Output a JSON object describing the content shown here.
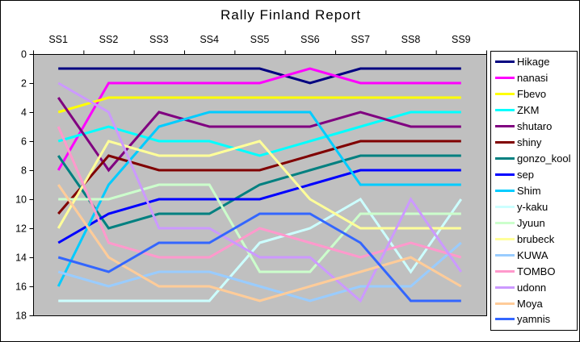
{
  "chart_data": {
    "type": "line",
    "title": "Rally Finland Report",
    "categories": [
      "SS1",
      "SS2",
      "SS3",
      "SS4",
      "SS5",
      "SS6",
      "SS7",
      "SS8",
      "SS9"
    ],
    "xlabel": "",
    "ylabel": "",
    "ylim": [
      0,
      18
    ],
    "y_ticks": [
      0,
      2,
      4,
      6,
      8,
      10,
      12,
      14,
      16,
      18
    ],
    "y_direction": "down",
    "grid": false,
    "plot_bg": "#c0c0c0",
    "legend_position": "right",
    "series": [
      {
        "name": "Hikage",
        "color": "#000080",
        "values": [
          1,
          1,
          1,
          1,
          1,
          2,
          1,
          1,
          1
        ]
      },
      {
        "name": "nanasi",
        "color": "#ff00ff",
        "values": [
          8,
          2,
          2,
          2,
          2,
          1,
          2,
          2,
          2
        ]
      },
      {
        "name": "Fbevo",
        "color": "#ffff00",
        "values": [
          4,
          3,
          3,
          3,
          3,
          3,
          3,
          3,
          3
        ]
      },
      {
        "name": "ZKM",
        "color": "#00ffff",
        "values": [
          6,
          5,
          6,
          6,
          7,
          6,
          5,
          4,
          4
        ]
      },
      {
        "name": "shutaro",
        "color": "#800080",
        "values": [
          3,
          8,
          4,
          5,
          5,
          5,
          4,
          5,
          5
        ]
      },
      {
        "name": "shiny",
        "color": "#800000",
        "values": [
          11,
          7,
          8,
          8,
          8,
          7,
          6,
          6,
          6
        ]
      },
      {
        "name": "gonzo_kool",
        "color": "#008080",
        "values": [
          7,
          12,
          11,
          11,
          9,
          8,
          7,
          7,
          7
        ]
      },
      {
        "name": "sep",
        "color": "#0000ff",
        "values": [
          13,
          11,
          10,
          10,
          10,
          9,
          8,
          8,
          8
        ]
      },
      {
        "name": "Shim",
        "color": "#00ccff",
        "values": [
          16,
          9,
          5,
          4,
          4,
          4,
          9,
          9,
          9
        ]
      },
      {
        "name": "y-kaku",
        "color": "#ccffff",
        "values": [
          17,
          17,
          17,
          17,
          13,
          12,
          10,
          15,
          10
        ]
      },
      {
        "name": "Jyuun",
        "color": "#ccffcc",
        "values": [
          10,
          10,
          9,
          9,
          15,
          15,
          11,
          11,
          11
        ]
      },
      {
        "name": "brubeck",
        "color": "#ffff99",
        "values": [
          12,
          6,
          7,
          7,
          6,
          10,
          12,
          12,
          12
        ]
      },
      {
        "name": "KUWA",
        "color": "#99ccff",
        "values": [
          15,
          16,
          15,
          15,
          16,
          17,
          16,
          16,
          13
        ]
      },
      {
        "name": "TOMBO",
        "color": "#ff99cc",
        "values": [
          5,
          13,
          14,
          14,
          12,
          13,
          14,
          13,
          14
        ]
      },
      {
        "name": "udonn",
        "color": "#cc99ff",
        "values": [
          2,
          4,
          12,
          12,
          14,
          14,
          17,
          10,
          15
        ]
      },
      {
        "name": "Moya",
        "color": "#ffcc99",
        "values": [
          9,
          14,
          16,
          16,
          17,
          16,
          15,
          14,
          16
        ]
      },
      {
        "name": "yamnis",
        "color": "#3366ff",
        "values": [
          14,
          15,
          13,
          13,
          11,
          11,
          13,
          17,
          17
        ]
      }
    ]
  }
}
